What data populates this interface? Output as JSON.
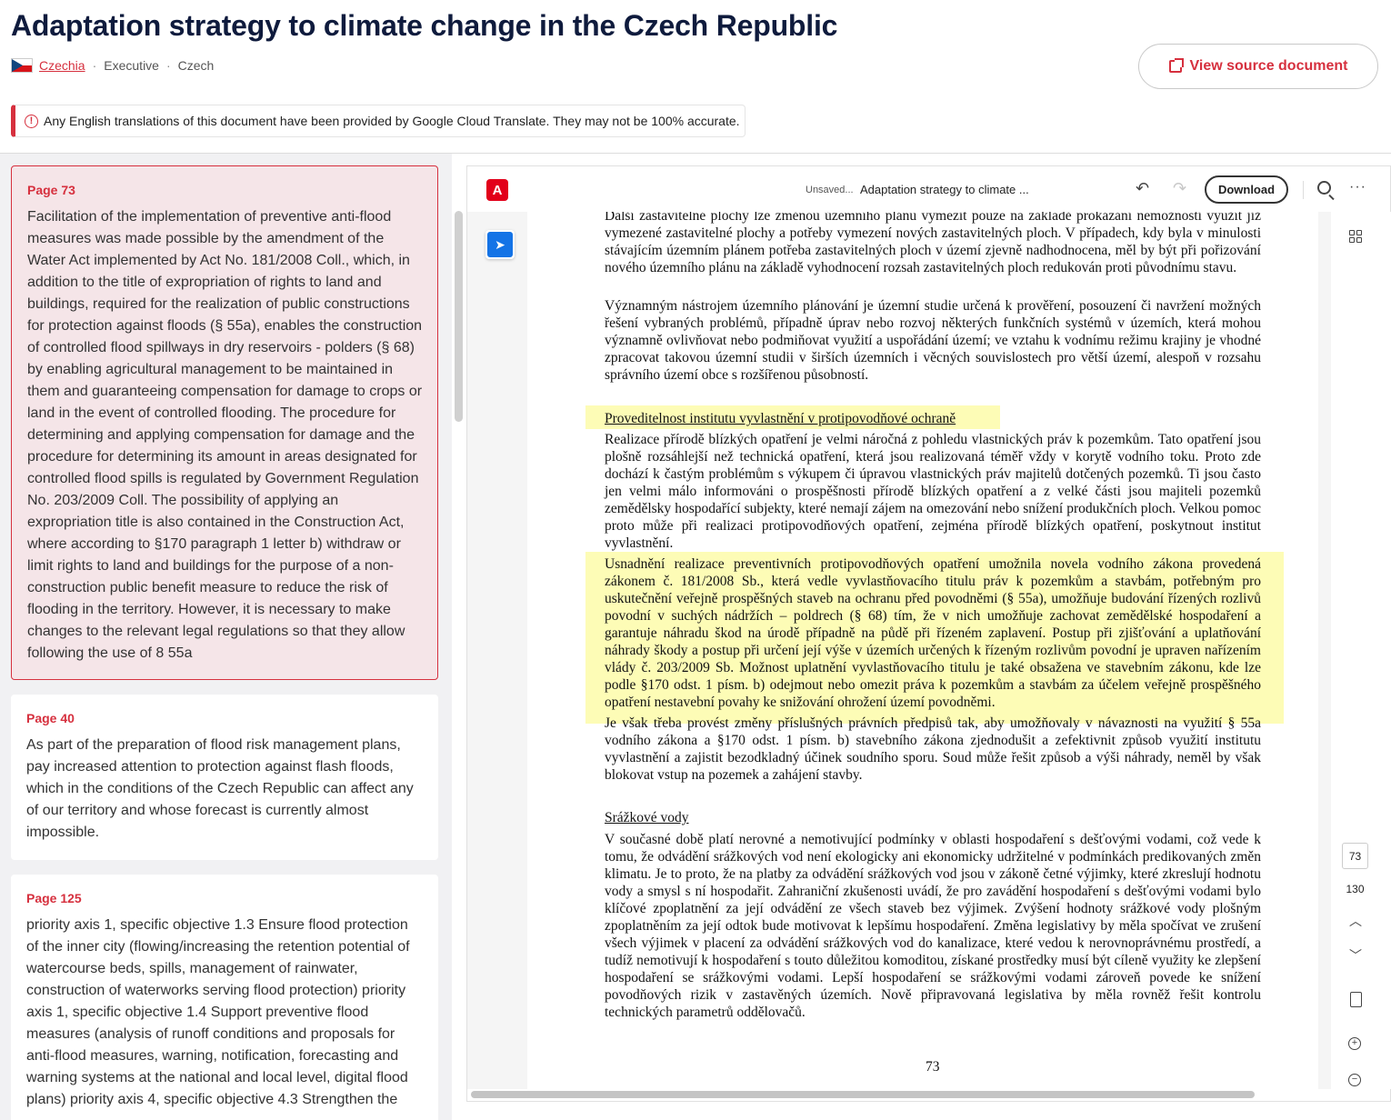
{
  "header": {
    "title": "Adaptation strategy to climate change in the Czech Republic",
    "country": "Czechia",
    "branch": "Executive",
    "language": "Czech",
    "source_button": "View source document",
    "notice": "Any English translations of this document have been provided by Google Cloud Translate. They may not be 100% accurate."
  },
  "passages": [
    {
      "page": "Page 73",
      "text": "Facilitation of the implementation of preventive anti-flood measures was made possible by the amendment of the Water Act implemented by Act No. 181/2008 Coll., which, in addition to the title of expropriation of rights to land and buildings, required for the realization of public constructions for protection against floods (§ 55a), enables the construction of controlled flood spillways in dry reservoirs - polders (§ 68) by enabling agricultural management to be maintained in them and guaranteeing compensation for damage to crops or land in the event of controlled flooding. The procedure for determining and applying compensation for damage and the procedure for determining its amount in areas designated for controlled flood spills is regulated by Government Regulation No. 203/2009 Coll. The possibility of applying an expropriation title is also contained in the Construction Act, where according to §170 paragraph 1 letter b) withdraw or limit rights to land and buildings for the purpose of a non-construction public benefit measure to reduce the risk of flooding in the territory. However, it is necessary to make changes to the relevant legal regulations so that they allow following the use of 8 55a"
    },
    {
      "page": "Page 40",
      "text": "As part of the preparation of flood risk management plans, pay increased attention to protection against flash floods, which in the conditions of the Czech Republic can affect any of our territory and whose forecast is currently almost impossible."
    },
    {
      "page": "Page 125",
      "text": "priority axis 1, specific objective 1.3 Ensure flood protection of the inner city (flowing/increasing the retention potential of watercourse beds, spills, management of rainwater, construction of waterworks serving flood protection) priority axis 1, specific objective 1.4 Support preventive flood measures (analysis of runoff conditions and proposals for anti-flood measures, warning, notification, forecasting and warning systems at the national and local level, digital flood plans) priority axis 4, specific objective 4.3 Strengthen the"
    }
  ],
  "viewer": {
    "logo": "A",
    "unsaved": "Unsaved...",
    "doc_title": "Adaptation strategy to climate ...",
    "download": "Download",
    "current_page": "73",
    "total_pages": "130",
    "icons": [
      "pdf-logo-icon",
      "undo-icon",
      "redo-icon",
      "search-icon",
      "more-icon",
      "select-tool-icon",
      "thumbnails-icon",
      "chevron-up-icon",
      "chevron-down-icon",
      "document-icon",
      "zoom-in-icon",
      "zoom-out-icon"
    ],
    "pdf": {
      "p1": "Další zastavitelné plochy lze změnou územního plánu vymezit pouze na základě prokázání nemožnosti využít již vymezené zastavitelné plochy a potřeby vymezení nových zastavitelných ploch. V případech, kdy byla v minulosti stávajícím územním plánem potřeba zastavitelných ploch v území zjevně nadhodnocena, měl by být při pořizování nového územního plánu na základě vyhodnocení rozsah zastavitelných ploch redukován proti původnímu stavu.",
      "p2": "Významným nástrojem územního plánování je územní studie určená k prověření, posouzení či navržení možných řešení vybraných problémů, případně úprav nebo rozvoj některých funkčních systémů v územích, která mohou významně ovlivňovat nebo podmiňovat využití a uspořádání území; ve vztahu k vodnímu režimu krajiny je vhodné zpracovat takovou územní studii v širších územních i věcných souvislostech pro větší území, alespoň v rozsahu správního území obce s rozšířenou působností.",
      "h1": "Proveditelnost institutu vyvlastnění v protipovodňové ochraně",
      "p3": "Realizace přírodě blízkých opatření je velmi náročná z pohledu vlastnických práv k pozemkům. Tato opatření jsou plošně rozsáhlejší než technická opatření, která jsou realizovaná téměř vždy v korytě vodního toku. Proto zde dochází k častým problémům s výkupem či úpravou vlastnických práv majitelů dotčených pozemků. Ti jsou často jen velmi málo informováni o prospěšnosti přírodě blízkých opatření a z velké části jsou majiteli pozemků zemědělsky hospodařící subjekty, které nemají zájem na omezování nebo snížení produkčních ploch. Velkou pomoc proto může při realizaci protipovodňových opatření, zejména přírodě blízkých opatření, poskytnout institut vyvlastnění.",
      "p4": "Usnadnění realizace preventivních protipovodňových opatření umožnila novela vodního zákona provedená zákonem č. 181/2008 Sb., která vedle vyvlastňovacího titulu práv k pozemkům a stavbám, potřebným pro uskutečnění veřejně prospěšných staveb na ochranu před povodněmi (§ 55a), umožňuje budování řízených rozlivů povodní v suchých nádržích – poldrech (§ 68) tím, že v nich umožňuje zachovat zemědělské hospodaření a garantuje náhradu škod na úrodě případně na půdě při řízeném zaplavení. Postup při zjišťování a uplatňování náhrady škody a postup při určení její výše v územích určených k řízeným rozlivům povodní je upraven nařízením vlády č. 203/2009 Sb. Možnost uplatnění vyvlastňovacího titulu je také obsažena ve stavebním zákonu, kde lze podle §170 odst. 1 písm. b) odejmout nebo omezit práva k pozemkům a stavbám za účelem veřejně prospěšného opatření nestavební povahy ke snižování ohrožení území povodněmi.",
      "p5": "Je však třeba provést změny příslušných právních předpisů tak, aby umožňovaly v návaznosti na využití § 55a vodního zákona a §170 odst. 1 písm. b) stavebního zákona zjednodušit a zefektivnit způsob využití institutu vyvlastnění a zajistit bezodkladný účinek soudního sporu. Soud může řešit způsob a výši náhrady, neměl by však blokovat vstup na pozemek a zahájení stavby.",
      "h2": "Srážkové vody",
      "p6": "V současné době platí nerovné a nemotivující podmínky v oblasti hospodaření s dešťovými vodami, což vede k tomu, že odvádění srážkových vod není ekologicky ani ekonomicky udržitelné v podmínkách predikovaných změn klimatu. Je to proto, že na platby za odvádění srážkových vod jsou v zákoně četné výjimky, které zkreslují hodnotu vody a smysl s ní hospodařit. Zahraniční zkušenosti uvádí, že pro zavádění hospodaření s dešťovými vodami bylo klíčové zpoplatnění za její odvádění ze všech staveb bez výjimek. Zvýšení hodnoty srážkové vody plošným zpoplatněním za její odtok bude motivovat k lepšímu hospodaření. Změna legislativy by měla spočívat ve zrušení všech výjimek v placení za odvádění srážkových vod do kanalizace, které vedou k nerovnoprávnému prostředí, a tudíž nemotivují k hospodaření s touto důležitou komoditou, získané prostředky musí být cíleně využity ke zlepšení hospodaření se srážkovými vodami. Lepší hospodaření se srážkovými vodami zároveň povede ke snížení povodňových rizik v zastavěných územích. Nově připravovaná legislativa by měla rovněž řešit kontrolu technických parametrů oddělovačů.",
      "page_number": "73"
    }
  }
}
